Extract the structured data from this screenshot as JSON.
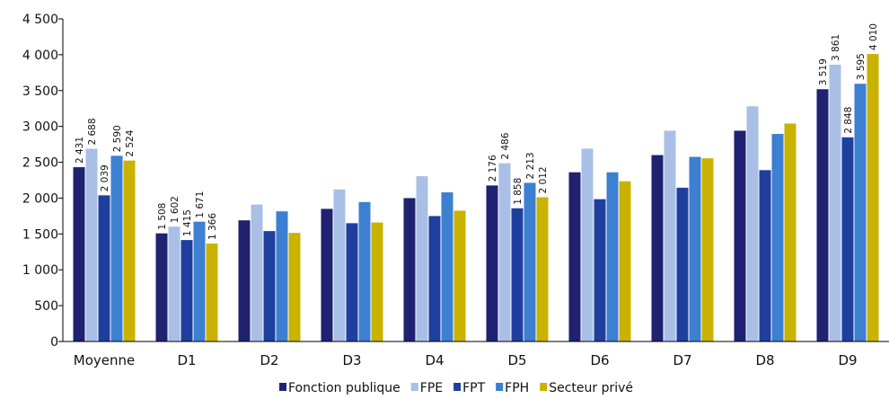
{
  "chart_data": {
    "type": "bar",
    "title": "",
    "xlabel": "",
    "ylabel": "",
    "ylim": [
      0,
      4500
    ],
    "yticks": [
      0,
      500,
      1000,
      1500,
      2000,
      2500,
      3000,
      3500,
      4000,
      4500
    ],
    "ytick_labels": [
      "0",
      "500",
      "1 000",
      "1 500",
      "2 000",
      "2 500",
      "3 000",
      "3 500",
      "4 000",
      "4 500"
    ],
    "grid": false,
    "legend_position": "bottom-center",
    "categories": [
      "Moyenne",
      "D1",
      "D2",
      "D3",
      "D4",
      "D5",
      "D6",
      "D7",
      "D8",
      "D9"
    ],
    "labeled_categories": [
      "Moyenne",
      "D1",
      "D5",
      "D9"
    ],
    "series": [
      {
        "name": "Fonction publique",
        "color": "#1f2270",
        "values": [
          2431,
          1508,
          1690,
          1850,
          2000,
          2176,
          2360,
          2600,
          2940,
          3519
        ],
        "labels": [
          "2 431",
          "1 508",
          "",
          "",
          "",
          "2 176",
          "",
          "",
          "",
          "3 519"
        ]
      },
      {
        "name": "FPE",
        "color": "#a9bfe6",
        "values": [
          2688,
          1602,
          1910,
          2120,
          2305,
          2486,
          2690,
          2940,
          3280,
          3861
        ],
        "labels": [
          "2 688",
          "1 602",
          "",
          "",
          "",
          "2 486",
          "",
          "",
          "",
          "3 861"
        ]
      },
      {
        "name": "FPT",
        "color": "#1f3f9e",
        "values": [
          2039,
          1415,
          1540,
          1650,
          1750,
          1858,
          1985,
          2145,
          2390,
          2848
        ],
        "labels": [
          "2 039",
          "1 415",
          "",
          "",
          "",
          "1 858",
          "",
          "",
          "",
          "2 848"
        ]
      },
      {
        "name": "FPH",
        "color": "#3d7fd1",
        "values": [
          2590,
          1671,
          1815,
          1945,
          2080,
          2213,
          2360,
          2575,
          2895,
          3595
        ],
        "labels": [
          "2 590",
          "1 671",
          "",
          "",
          "",
          "2 213",
          "",
          "",
          "",
          "3 595"
        ]
      },
      {
        "name": "Secteur privé",
        "color": "#c9b200",
        "values": [
          2524,
          1366,
          1515,
          1660,
          1825,
          2012,
          2235,
          2555,
          3040,
          4010
        ],
        "labels": [
          "2 524",
          "1 366",
          "",
          "",
          "",
          "2 012",
          "",
          "",
          "",
          "4 010"
        ]
      }
    ]
  }
}
